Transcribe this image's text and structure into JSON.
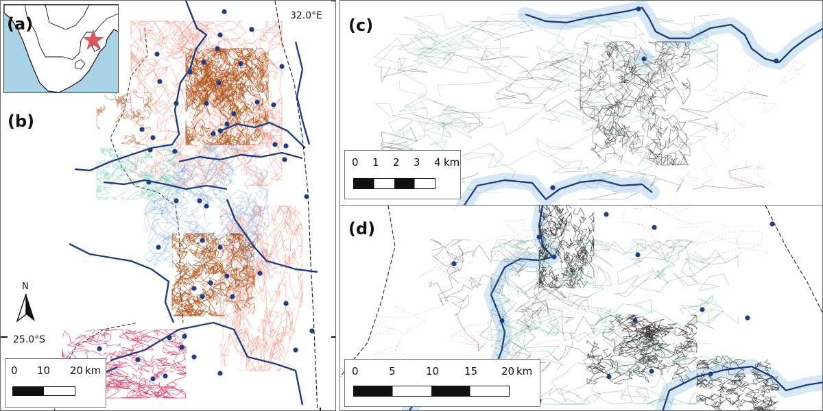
{
  "panels": {
    "a": {
      "label": "(a)"
    },
    "b": {
      "label": "(b)"
    },
    "c": {
      "label": "(c)"
    },
    "d": {
      "label": "(d)"
    }
  },
  "axis_labels": {
    "longitude": "32.0°E",
    "latitude": "25.0°S"
  },
  "north_arrow": {
    "label": "N"
  },
  "scale_bars": {
    "b": {
      "ticks": [
        "0",
        "10",
        "20"
      ],
      "unit": "km"
    },
    "c": {
      "ticks": [
        "0",
        "1",
        "2",
        "3",
        "4"
      ],
      "unit": "km"
    },
    "d": {
      "ticks": [
        "0",
        "5",
        "10",
        "15",
        "20"
      ],
      "unit": "km"
    }
  },
  "colors": {
    "river": "#1f3d85",
    "river_buffer": "#cfe4f4",
    "sea": "#a9d2e4",
    "marker": "#d9575f",
    "points": "#1f3d85",
    "track_brown": "#b0561e",
    "track_salmon": "#f08a78",
    "track_blue": "#8fb6dd",
    "track_teal": "#7fd1bd",
    "track_crimson": "#dc1f52",
    "track_dark": "#2b2b2b",
    "track_green": "#5fa68a"
  }
}
